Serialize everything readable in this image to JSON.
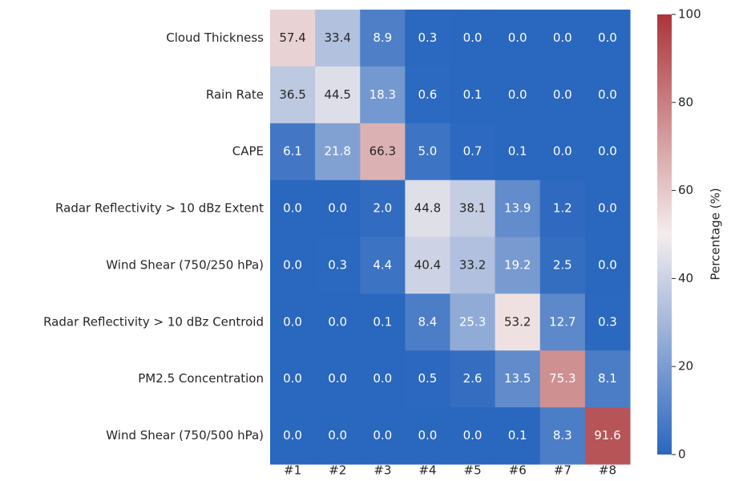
{
  "chart_data": {
    "type": "heatmap",
    "rows": [
      "Cloud Thickness",
      "Rain Rate",
      "CAPE",
      "Radar Reflectivity > 10 dBz Extent",
      "Wind Shear (750/250 hPa)",
      "Radar Reflectivity > 10 dBz Centroid",
      "PM2.5 Concentration",
      "Wind Shear (750/500 hPa)"
    ],
    "columns": [
      "#1",
      "#2",
      "#3",
      "#4",
      "#5",
      "#6",
      "#7",
      "#8"
    ],
    "values": [
      [
        57.4,
        33.4,
        8.9,
        0.3,
        0,
        0,
        0,
        0
      ],
      [
        36.5,
        44.5,
        18.3,
        0.6,
        0.1,
        0,
        0,
        0
      ],
      [
        6.1,
        21.8,
        66.3,
        5,
        0.7,
        0.1,
        0,
        0
      ],
      [
        0,
        0,
        2,
        44.8,
        38.1,
        13.9,
        1.2,
        0
      ],
      [
        0,
        0.3,
        4.4,
        40.4,
        33.2,
        19.2,
        2.5,
        0
      ],
      [
        0,
        0,
        0.1,
        8.4,
        25.3,
        53.2,
        12.7,
        0.3
      ],
      [
        0,
        0,
        0,
        0.5,
        2.6,
        13.5,
        75.3,
        8.1
      ],
      [
        0,
        0,
        0,
        0,
        0,
        0.1,
        8.3,
        91.6
      ]
    ],
    "value_labels": [
      [
        "57.4",
        "33.4",
        "8.9",
        "0.3",
        "0.0",
        "0.0",
        "0.0",
        "0.0"
      ],
      [
        "36.5",
        "44.5",
        "18.3",
        "0.6",
        "0.1",
        "0.0",
        "0.0",
        "0.0"
      ],
      [
        "6.1",
        "21.8",
        "66.3",
        "5.0",
        "0.7",
        "0.1",
        "0.0",
        "0.0"
      ],
      [
        "0.0",
        "0.0",
        "2.0",
        "44.8",
        "38.1",
        "13.9",
        "1.2",
        "0.0"
      ],
      [
        "0.0",
        "0.3",
        "4.4",
        "40.4",
        "33.2",
        "19.2",
        "2.5",
        "0.0"
      ],
      [
        "0.0",
        "0.0",
        "0.1",
        "8.4",
        "25.3",
        "53.2",
        "12.7",
        "0.3"
      ],
      [
        "0.0",
        "0.0",
        "0.0",
        "0.5",
        "2.6",
        "13.5",
        "75.3",
        "8.1"
      ],
      [
        "0.0",
        "0.0",
        "0.0",
        "0.0",
        "0.0",
        "0.1",
        "8.3",
        "91.6"
      ]
    ],
    "colormap": [
      "#2a67bf",
      "#f4eded",
      "#ab353a"
    ],
    "clim": [
      0,
      100
    ],
    "cticks": [
      0,
      20,
      40,
      60,
      80,
      100
    ],
    "colorbar_label": "Percentage (%)"
  }
}
